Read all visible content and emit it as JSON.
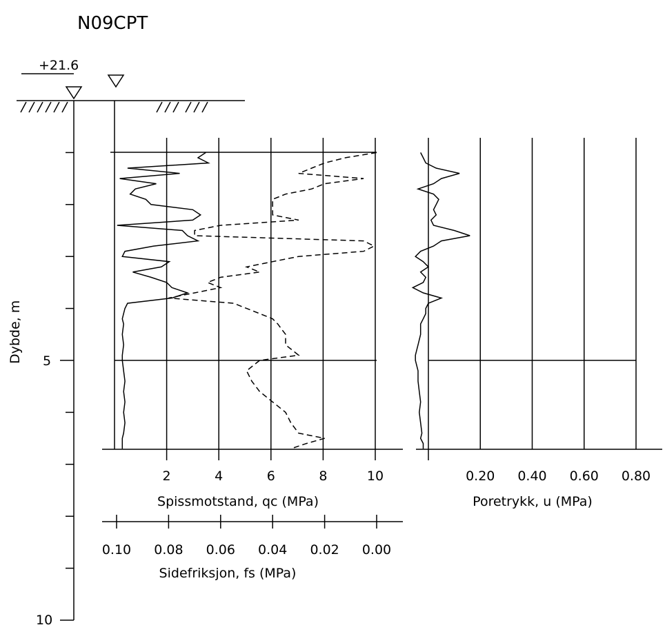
{
  "title": "N09CPT",
  "elevation_label": "+21.6",
  "colors": {
    "line": "#000000",
    "background": "#ffffff"
  },
  "depth_axis": {
    "label": "Dybde, m",
    "ticks": [
      5,
      10
    ],
    "tick_labels": [
      "5",
      "10"
    ],
    "range": [
      0,
      10
    ]
  },
  "qc_axis": {
    "label": "Spissmotstand, qc (MPa)",
    "ticks": [
      2,
      4,
      6,
      8,
      10
    ],
    "tick_labels": [
      "2",
      "4",
      "6",
      "8",
      "10"
    ],
    "range": [
      0,
      10
    ]
  },
  "fs_axis": {
    "label": "Sidefriksjon, fs (MPa)",
    "ticks": [
      0.1,
      0.08,
      0.06,
      0.04,
      0.02,
      0.0
    ],
    "tick_labels": [
      "0.10",
      "0.08",
      "0.06",
      "0.04",
      "0.02",
      "0.00"
    ],
    "range": [
      0.1,
      0.0
    ]
  },
  "u_axis": {
    "label": "Poretrykk, u (MPa)",
    "ticks": [
      0.2,
      0.4,
      0.6,
      0.8
    ],
    "tick_labels": [
      "0.20",
      "0.40",
      "0.60",
      "0.80"
    ],
    "range": [
      0,
      0.8
    ]
  },
  "chart_data": {
    "type": "line",
    "title": "N09CPT",
    "grid": true,
    "depth_unit": "m",
    "series": [
      {
        "name": "Spissmotstand, qc (MPa)",
        "style": "solid",
        "depth": [
          1.0,
          1.1,
          1.2,
          1.3,
          1.4,
          1.5,
          1.6,
          1.7,
          1.8,
          1.9,
          2.0,
          2.1,
          2.2,
          2.3,
          2.4,
          2.5,
          2.6,
          2.7,
          2.8,
          2.9,
          3.0,
          3.1,
          3.2,
          3.3,
          3.4,
          3.5,
          3.6,
          3.7,
          3.8,
          3.9,
          4.0,
          4.1,
          4.2,
          4.3,
          4.5,
          4.7,
          4.9,
          5.0,
          5.2,
          5.4,
          5.6,
          5.8,
          6.0,
          6.2,
          6.4,
          6.5,
          6.6,
          6.7
        ],
        "values": [
          3.5,
          3.2,
          3.6,
          0.5,
          2.5,
          0.2,
          1.6,
          0.8,
          0.6,
          1.2,
          1.4,
          3.0,
          3.3,
          3.0,
          0.1,
          2.6,
          2.8,
          3.2,
          1.5,
          0.4,
          0.3,
          2.1,
          1.8,
          0.7,
          1.4,
          2.0,
          2.2,
          2.8,
          2.2,
          0.5,
          0.4,
          0.35,
          0.3,
          0.35,
          0.3,
          0.35,
          0.3,
          0.3,
          0.35,
          0.4,
          0.35,
          0.4,
          0.35,
          0.4,
          0.35,
          0.3,
          0.3,
          0.3
        ]
      },
      {
        "name": "Sidefriksjon, fs (MPa)",
        "style": "dashed",
        "depth": [
          1.0,
          1.1,
          1.2,
          1.3,
          1.4,
          1.5,
          1.6,
          1.7,
          1.8,
          1.9,
          2.0,
          2.1,
          2.2,
          2.3,
          2.4,
          2.5,
          2.6,
          2.7,
          2.8,
          2.9,
          3.0,
          3.1,
          3.2,
          3.3,
          3.4,
          3.5,
          3.6,
          3.7,
          3.8,
          3.9,
          4.0,
          4.1,
          4.2,
          4.3,
          4.5,
          4.7,
          4.9,
          5.0,
          5.2,
          5.4,
          5.6,
          5.8,
          6.0,
          6.2,
          6.4,
          6.5,
          6.6,
          6.7
        ],
        "values": [
          0.0,
          0.012,
          0.02,
          0.025,
          0.03,
          0.005,
          0.02,
          0.025,
          0.035,
          0.04,
          0.04,
          0.04,
          0.04,
          0.03,
          0.06,
          0.07,
          0.07,
          0.005,
          0.001,
          0.005,
          0.03,
          0.04,
          0.05,
          0.045,
          0.06,
          0.065,
          0.06,
          0.07,
          0.08,
          0.055,
          0.05,
          0.045,
          0.04,
          0.038,
          0.035,
          0.035,
          0.03,
          0.045,
          0.05,
          0.048,
          0.045,
          0.04,
          0.035,
          0.033,
          0.03,
          0.02,
          0.027,
          0.033
        ]
      },
      {
        "name": "Poretrykk, u (MPa)",
        "style": "solid",
        "depth": [
          1.0,
          1.1,
          1.2,
          1.3,
          1.4,
          1.5,
          1.6,
          1.7,
          1.8,
          1.9,
          2.0,
          2.1,
          2.2,
          2.3,
          2.4,
          2.5,
          2.6,
          2.7,
          2.8,
          2.9,
          3.0,
          3.1,
          3.2,
          3.3,
          3.4,
          3.5,
          3.6,
          3.7,
          3.8,
          3.9,
          4.0,
          4.1,
          4.2,
          4.3,
          4.5,
          4.7,
          4.9,
          5.0,
          5.2,
          5.4,
          5.6,
          5.8,
          6.0,
          6.2,
          6.4,
          6.5,
          6.6,
          6.7
        ],
        "values": [
          -0.03,
          -0.02,
          -0.01,
          0.03,
          0.12,
          0.05,
          0.02,
          -0.04,
          0.02,
          0.04,
          0.03,
          0.02,
          0.03,
          0.01,
          0.02,
          0.1,
          0.16,
          0.05,
          0.02,
          -0.03,
          -0.05,
          -0.02,
          0.0,
          -0.03,
          -0.01,
          -0.02,
          -0.06,
          -0.02,
          0.05,
          0.0,
          -0.01,
          -0.01,
          -0.02,
          -0.03,
          -0.03,
          -0.04,
          -0.05,
          -0.05,
          -0.04,
          -0.04,
          -0.035,
          -0.03,
          -0.035,
          -0.03,
          -0.025,
          -0.03,
          -0.02,
          -0.02
        ]
      }
    ]
  }
}
